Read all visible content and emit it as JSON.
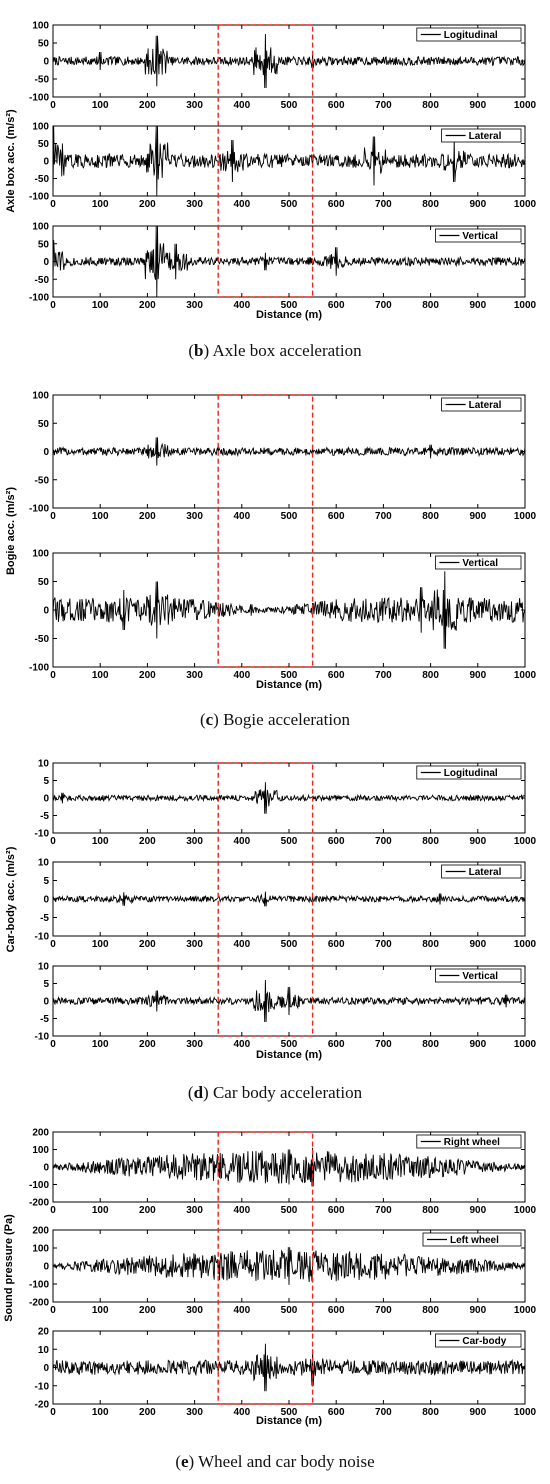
{
  "x_axis": {
    "label": "Distance (m)",
    "range": [
      0,
      1000
    ],
    "ticks": [
      0,
      100,
      200,
      300,
      400,
      500,
      600,
      700,
      800,
      900,
      1000
    ]
  },
  "highlight_region": {
    "x_range": [
      350,
      550
    ],
    "color": "#e8251f"
  },
  "colors": {
    "signal": "#000000",
    "frame": "#000000"
  },
  "figures": [
    {
      "id": "b",
      "caption_letter": "b",
      "caption_text": ") Axle box acceleration",
      "ylabel": "Axle box acc. (m/s²)",
      "xlabel": "Distance (m)",
      "panels": [
        {
          "legend": "Logitudinal",
          "ylim": [
            -100,
            100
          ],
          "yticks": [
            -100,
            -50,
            0,
            50,
            100
          ]
        },
        {
          "legend": "Lateral",
          "ylim": [
            -100,
            100
          ],
          "yticks": [
            -100,
            -50,
            0,
            50,
            100
          ]
        },
        {
          "legend": "Vertical",
          "ylim": [
            -100,
            100
          ],
          "yticks": [
            -100,
            -50,
            0,
            50,
            100
          ]
        }
      ]
    },
    {
      "id": "c",
      "caption_letter": "c",
      "caption_text": ") Bogie acceleration",
      "ylabel": "Bogie acc. (m/s²)",
      "xlabel": "Distance (m)",
      "panels": [
        {
          "legend": "Lateral",
          "ylim": [
            -100,
            100
          ],
          "yticks": [
            -100,
            -50,
            0,
            50,
            100
          ]
        },
        {
          "legend": "Vertical",
          "ylim": [
            -100,
            100
          ],
          "yticks": [
            -100,
            -50,
            0,
            50,
            100
          ]
        }
      ]
    },
    {
      "id": "d",
      "caption_letter": "d",
      "caption_text": ") Car body acceleration",
      "ylabel": "Car-body acc. (m/s²)",
      "xlabel": "Distance (m)",
      "panels": [
        {
          "legend": "Logitudinal",
          "ylim": [
            -10,
            10
          ],
          "yticks": [
            -10,
            -5,
            0,
            5,
            10
          ]
        },
        {
          "legend": "Lateral",
          "ylim": [
            -10,
            10
          ],
          "yticks": [
            -10,
            -5,
            0,
            5,
            10
          ]
        },
        {
          "legend": "Vertical",
          "ylim": [
            -10,
            10
          ],
          "yticks": [
            -10,
            -5,
            0,
            5,
            10
          ]
        }
      ]
    },
    {
      "id": "e",
      "caption_letter": "e",
      "caption_text": ") Wheel and car body noise",
      "ylabel": "Sound pressure (Pa)",
      "xlabel": "Distance (m)",
      "panels": [
        {
          "legend": "Right wheel",
          "ylim": [
            -200,
            200
          ],
          "yticks": [
            -200,
            -100,
            0,
            100,
            200
          ]
        },
        {
          "legend": "Left wheel",
          "ylim": [
            -200,
            200
          ],
          "yticks": [
            -200,
            -100,
            0,
            100,
            200
          ]
        },
        {
          "legend": "Car-body",
          "ylim": [
            -20,
            20
          ],
          "yticks": [
            -20,
            -10,
            0,
            10,
            20
          ]
        }
      ]
    }
  ],
  "chart_data": [
    {
      "type": "line",
      "figure": "b",
      "x_range": [
        0,
        1000
      ],
      "series": [
        {
          "name": "Logitudinal",
          "ylim": [
            -100,
            100
          ],
          "base_amplitude": 12,
          "peaks": [
            {
              "x": 100,
              "y": 25
            },
            {
              "x": 220,
              "y": 70
            },
            {
              "x": 450,
              "y": 75
            },
            {
              "x": 550,
              "y": 20
            }
          ]
        },
        {
          "name": "Lateral",
          "ylim": [
            -100,
            100
          ],
          "base_amplitude": 20,
          "peaks": [
            {
              "x": 0,
              "y": 100
            },
            {
              "x": 220,
              "y": 100
            },
            {
              "x": 380,
              "y": 60
            },
            {
              "x": 680,
              "y": 70
            },
            {
              "x": 850,
              "y": 60
            }
          ]
        },
        {
          "name": "Vertical",
          "ylim": [
            -100,
            100
          ],
          "base_amplitude": 12,
          "peaks": [
            {
              "x": 0,
              "y": 60
            },
            {
              "x": 220,
              "y": 100
            },
            {
              "x": 260,
              "y": 50
            },
            {
              "x": 450,
              "y": 25
            },
            {
              "x": 600,
              "y": 40
            }
          ]
        }
      ]
    },
    {
      "type": "line",
      "figure": "c",
      "x_range": [
        0,
        1000
      ],
      "series": [
        {
          "name": "Lateral",
          "ylim": [
            -100,
            100
          ],
          "base_amplitude": 7,
          "peaks": [
            {
              "x": 220,
              "y": 25
            },
            {
              "x": 800,
              "y": 12
            }
          ]
        },
        {
          "name": "Vertical",
          "ylim": [
            -100,
            100
          ],
          "base_amplitude": 22,
          "peaks": [
            {
              "x": 150,
              "y": 35
            },
            {
              "x": 220,
              "y": 50
            },
            {
              "x": 420,
              "y": 10
            },
            {
              "x": 780,
              "y": 40
            },
            {
              "x": 830,
              "y": 68
            }
          ]
        }
      ]
    },
    {
      "type": "line",
      "figure": "d",
      "x_range": [
        0,
        1000
      ],
      "series": [
        {
          "name": "Logitudinal",
          "ylim": [
            -10,
            10
          ],
          "base_amplitude": 0.8,
          "peaks": [
            {
              "x": 20,
              "y": 1.5
            },
            {
              "x": 450,
              "y": 4.5
            },
            {
              "x": 900,
              "y": 0.8
            }
          ]
        },
        {
          "name": "Lateral",
          "ylim": [
            -10,
            10
          ],
          "base_amplitude": 0.8,
          "peaks": [
            {
              "x": 150,
              "y": 1.8
            },
            {
              "x": 450,
              "y": 2.0
            },
            {
              "x": 820,
              "y": 1.5
            }
          ]
        },
        {
          "name": "Vertical",
          "ylim": [
            -10,
            10
          ],
          "base_amplitude": 1.0,
          "peaks": [
            {
              "x": 220,
              "y": 3.0
            },
            {
              "x": 450,
              "y": 6.0
            },
            {
              "x": 500,
              "y": 4.0
            },
            {
              "x": 960,
              "y": 1.8
            }
          ]
        }
      ]
    },
    {
      "type": "line",
      "figure": "e",
      "x_range": [
        0,
        1000
      ],
      "series": [
        {
          "name": "Right wheel",
          "ylim": [
            -200,
            200
          ],
          "base_amplitude": 95,
          "peaks": [
            {
              "x": 500,
              "y": 100
            },
            {
              "x": 550,
              "y": 110
            }
          ]
        },
        {
          "name": "Left wheel",
          "ylim": [
            -200,
            200
          ],
          "base_amplitude": 90,
          "peaks": [
            {
              "x": 500,
              "y": 105
            }
          ]
        },
        {
          "name": "Car-body",
          "ylim": [
            -20,
            20
          ],
          "base_amplitude": 4,
          "peaks": [
            {
              "x": 450,
              "y": 13
            },
            {
              "x": 550,
              "y": 10
            }
          ]
        }
      ]
    }
  ]
}
